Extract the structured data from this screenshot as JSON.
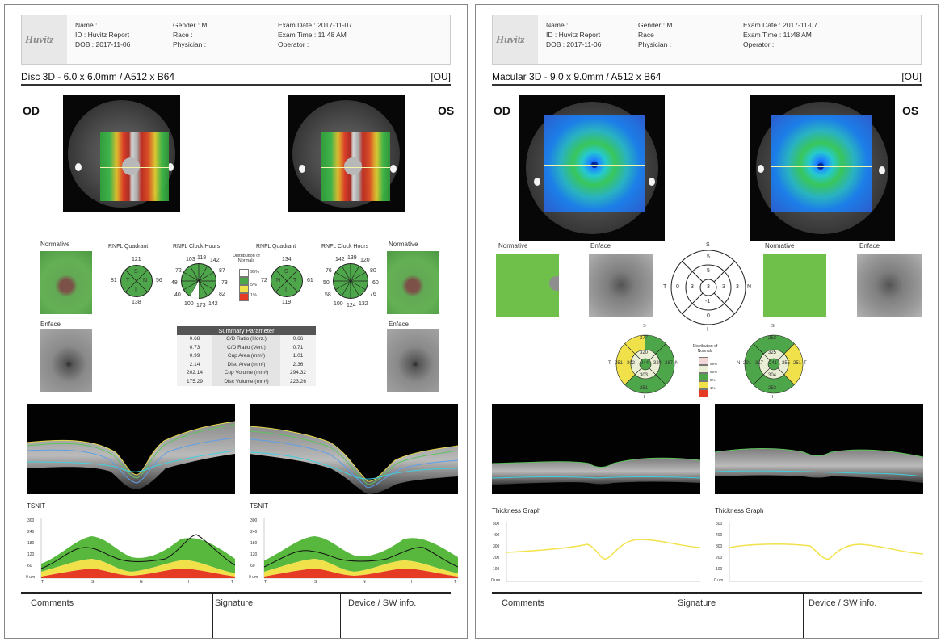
{
  "header": {
    "logo": "Huvitz",
    "name": "Name :",
    "id": "ID : Huvitz Report",
    "dob": "DOB : 2017-11-06",
    "gender": "Gender : M",
    "race": "Race :",
    "physician": "Physician :",
    "exam_date": "Exam Date : 2017-11-07",
    "exam_time": "Exam Time : 11:48 AM",
    "operator": "Operator :"
  },
  "left": {
    "title": "Disc 3D - 6.0 x 6.0mm / A512 x B64",
    "ou": "[OU]",
    "od": "OD",
    "os": "OS",
    "normative": "Normative",
    "enface": "Enface",
    "rnfl_quadrant": "RNFL Quadrant",
    "rnfl_clock": "RNFL Clock Hours",
    "distribution": "Distribution of Normals",
    "legend": [
      "95%",
      "5%",
      "1%"
    ],
    "od_quadrant": {
      "s": "121",
      "t": "81",
      "n": "56",
      "i": "138",
      "ls": "S",
      "lt": "T",
      "ln": "N",
      "li": "I"
    },
    "os_quadrant": {
      "s": "134",
      "t": "61",
      "n": "72",
      "i": "119",
      "ls": "S",
      "lt": "T",
      "ln": "N",
      "li": "I"
    },
    "od_clock": [
      "118",
      "142",
      "87",
      "73",
      "82",
      "142",
      "173",
      "100",
      "40",
      "48",
      "72",
      "103"
    ],
    "os_clock": [
      "139",
      "120",
      "80",
      "60",
      "76",
      "132",
      "124",
      "100",
      "58",
      "50",
      "76",
      "142"
    ],
    "summary": {
      "title": "Summary Parameter",
      "rows": [
        {
          "od": "0.68",
          "label": "C/D Ratio (Horz.)",
          "os": "0.66"
        },
        {
          "od": "0.73",
          "label": "C/D Ratio (Vert.)",
          "os": "0.71"
        },
        {
          "od": "0.99",
          "label": "Cup Area (mm²)",
          "os": "1.01"
        },
        {
          "od": "2.14",
          "label": "Disc Area (mm²)",
          "os": "2.36"
        },
        {
          "od": "202.14",
          "label": "Cup Volume (mm³)",
          "os": "294.32"
        },
        {
          "od": "175.29",
          "label": "Disc Volume (mm³)",
          "os": "223.26"
        }
      ]
    },
    "tsnit": "TSNIT",
    "tsnit_y": [
      "300",
      "240",
      "180",
      "120",
      "60",
      "0 um"
    ],
    "tsnit_x": [
      "T",
      "S",
      "N",
      "I",
      "T"
    ]
  },
  "right": {
    "title": "Macular 3D - 9.0 x 9.0mm / A512 x B64",
    "ou": "[OU]",
    "od": "OD",
    "os": "OS",
    "normative": "Normative",
    "enface": "Enface",
    "diff_grid": {
      "top": "S",
      "bottom": "I",
      "left": "T",
      "right": "N",
      "outer_s": "5",
      "inner_s": "5",
      "center": "3",
      "outer_t": "0",
      "inner_t": "3",
      "inner_n": "3",
      "outer_n": "3",
      "inner_i": "-1",
      "outer_i": "0"
    },
    "od_etdrs": {
      "s": "S",
      "i": "I",
      "t": "T",
      "n": "N",
      "outer_s": "277",
      "inner_s": "320",
      "outer_t": "251",
      "inner_t": "302",
      "center": "244",
      "inner_n": "324",
      "outer_n": "287",
      "inner_i": "303",
      "outer_i": "251"
    },
    "os_etdrs": {
      "s": "S",
      "i": "I",
      "t": "T",
      "n": "N",
      "outer_s": "253",
      "inner_s": "325",
      "outer_t": "291",
      "inner_t": "317",
      "center": "241",
      "inner_n": "255",
      "outer_n": "251",
      "inner_i": "304",
      "outer_i": "253"
    },
    "distribution": "Distribution of Normals",
    "legend": [
      "99%",
      "95%",
      "5%",
      "1%"
    ],
    "thickness": "Thickness Graph",
    "thickness_y": [
      "500",
      "400",
      "300",
      "200",
      "100",
      "0 um"
    ]
  },
  "footer": {
    "comments": "Comments",
    "signature": "Signature",
    "device": "Device / SW info."
  },
  "colors": {
    "normal_green": "#4ea64a",
    "border_yellow": "#f0e14a",
    "red_1pct": "#e53a24",
    "accent_thickness": "#f2e24c"
  }
}
